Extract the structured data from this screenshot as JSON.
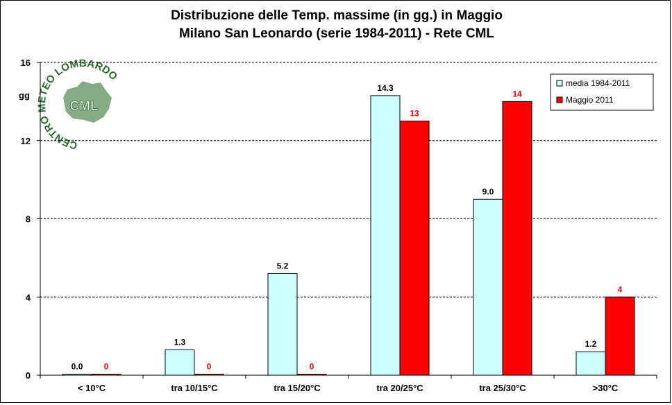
{
  "chart_data": {
    "type": "bar",
    "title": "Distribuzione  delle  Temp.  massime  (in gg.)  in  Maggio",
    "subtitle": "Milano  San  Leonardo  (serie  1984-2011)  - Rete  CML",
    "ylabel": "gg",
    "xlabel": "",
    "ylim": [
      0,
      16
    ],
    "yticks": [
      0,
      4,
      8,
      12,
      16
    ],
    "grid": true,
    "legend_position": "top-right",
    "categories": [
      "< 10°C",
      "tra 10/15°C",
      "tra 15/20°C",
      "tra 20/25°C",
      "tra 25/30°C",
      ">30°C"
    ],
    "series": [
      {
        "name": "media 1984-2011",
        "color": "#ccffff",
        "label_color": "#000000",
        "values": [
          0.0,
          1.3,
          5.2,
          14.3,
          9.0,
          1.2
        ],
        "labels": [
          "0.0",
          "1.3",
          "5.2",
          "14.3",
          "9.0",
          "1.2"
        ]
      },
      {
        "name": "Maggio 2011",
        "color": "#ff0000",
        "label_color": "#ff0000",
        "values": [
          0,
          0,
          0,
          13,
          14,
          4
        ],
        "labels": [
          "0",
          "0",
          "0",
          "13",
          "14",
          "4"
        ]
      }
    ]
  },
  "logo": {
    "ring_text": "CENTRO METEO LOMBARDO",
    "center_text": "CML",
    "color": "#2e6b2e"
  }
}
